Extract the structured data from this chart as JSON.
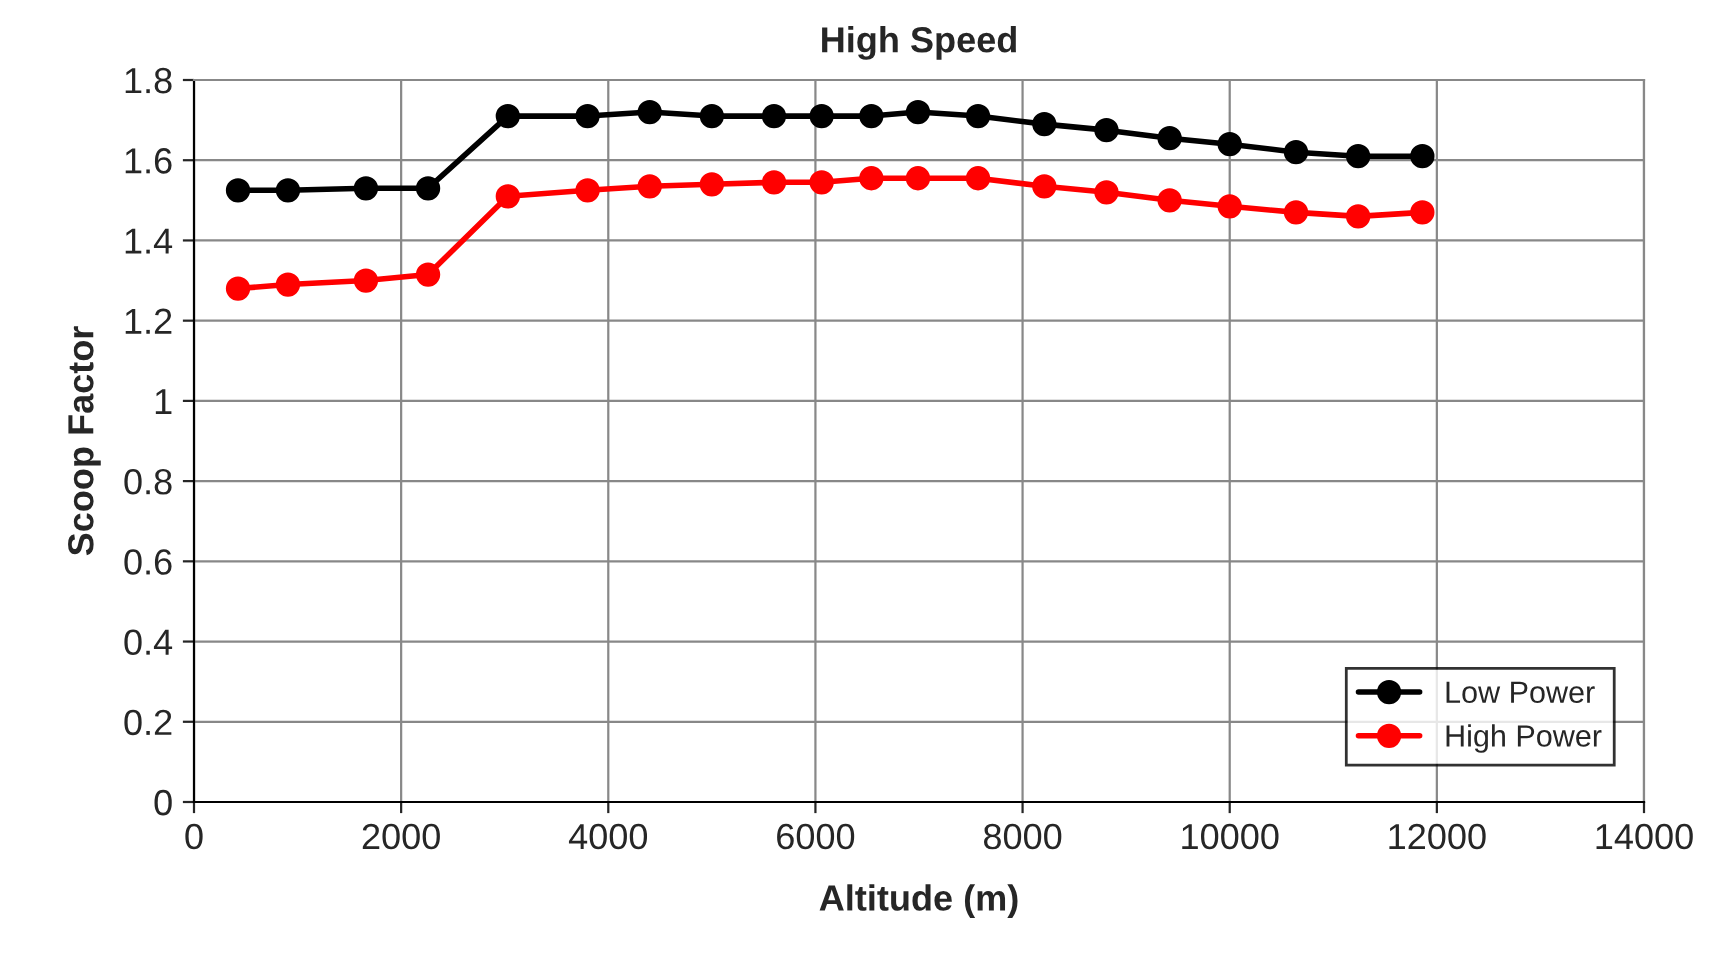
{
  "chart_data": {
    "type": "line",
    "title": "High Speed",
    "xlabel": "Altitude (m)",
    "ylabel": "Scoop Factor",
    "x": [
      425,
      907,
      1660,
      2260,
      3030,
      3800,
      4400,
      5000,
      5600,
      6060,
      6540,
      6990,
      7570,
      8210,
      8810,
      9420,
      10000,
      10640,
      11240,
      11860
    ],
    "series": [
      {
        "name": "Low Power",
        "color": "#000000",
        "values": [
          1.525,
          1.525,
          1.53,
          1.53,
          1.71,
          1.71,
          1.72,
          1.71,
          1.71,
          1.71,
          1.71,
          1.72,
          1.71,
          1.69,
          1.675,
          1.655,
          1.64,
          1.62,
          1.61,
          1.61
        ]
      },
      {
        "name": "High Power",
        "color": "#ff0000",
        "values": [
          1.28,
          1.29,
          1.3,
          1.315,
          1.51,
          1.525,
          1.535,
          1.54,
          1.545,
          1.545,
          1.555,
          1.555,
          1.555,
          1.535,
          1.52,
          1.5,
          1.485,
          1.47,
          1.46,
          1.47
        ]
      }
    ],
    "xlim": [
      0,
      14000
    ],
    "xticks": [
      0,
      2000,
      4000,
      6000,
      8000,
      10000,
      12000,
      14000
    ],
    "ylim": [
      0,
      1.8
    ],
    "yticks": [
      0,
      {
        "value": 0.2,
        "label": "0.2"
      },
      {
        "value": 0.4,
        "label": "0.4"
      },
      {
        "value": 0.6,
        "label": "0.6"
      },
      {
        "value": 0.8,
        "label": "0.8"
      },
      1,
      {
        "value": 1.2,
        "label": "1.2"
      },
      {
        "value": 1.4,
        "label": "1.4"
      },
      {
        "value": 1.6,
        "label": "1.6"
      },
      {
        "value": 1.8,
        "label": "1.8"
      }
    ],
    "grid": true,
    "legend": "bottom right",
    "marker": "circle",
    "line_style": "solid"
  }
}
